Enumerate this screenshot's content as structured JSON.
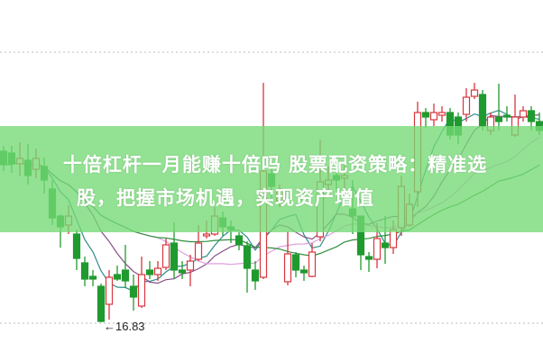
{
  "headline": {
    "line1": "十倍杠杆一月能赚十倍吗 股票配资策略：精准选",
    "line2": "股，把握市场机遇，实现资产增值"
  },
  "chart_data": {
    "type": "candlestick",
    "title": "",
    "annotations": [
      {
        "text": "←16.83",
        "value": 16.83,
        "label": "low"
      }
    ],
    "candle_fields": [
      "open",
      "high",
      "low",
      "close"
    ],
    "candles": [
      [
        26.33,
        26.63,
        25.23,
        25.58
      ],
      [
        26.23,
        26.63,
        25.13,
        25.63
      ],
      [
        25.63,
        26.83,
        24.93,
        25.93
      ],
      [
        25.83,
        26.73,
        24.48,
        24.98
      ],
      [
        25.33,
        26.48,
        24.83,
        25.93
      ],
      [
        25.48,
        25.98,
        23.98,
        24.73
      ],
      [
        24.23,
        24.73,
        22.23,
        22.63
      ],
      [
        22.73,
        22.83,
        20.98,
        22.13
      ],
      [
        22.23,
        23.33,
        21.73,
        22.73
      ],
      [
        21.73,
        21.98,
        19.73,
        20.38
      ],
      [
        20.13,
        20.48,
        18.83,
        19.23
      ],
      [
        19.38,
        19.73,
        18.83,
        19.23
      ],
      [
        18.83,
        18.98,
        16.83,
        16.88
      ],
      [
        17.83,
        19.73,
        16.98,
        19.33
      ],
      [
        19.48,
        19.98,
        19.13,
        19.23
      ],
      [
        19.73,
        21.13,
        18.73,
        19.13
      ],
      [
        18.83,
        19.48,
        17.48,
        18.23
      ],
      [
        17.73,
        20.48,
        17.63,
        19.48
      ],
      [
        19.73,
        20.23,
        19.23,
        19.48
      ],
      [
        19.48,
        20.23,
        19.13,
        19.83
      ],
      [
        19.88,
        21.48,
        19.73,
        21.13
      ],
      [
        21.23,
        22.38,
        19.23,
        19.73
      ],
      [
        19.73,
        20.23,
        19.23,
        19.58
      ],
      [
        19.73,
        20.58,
        18.83,
        20.23
      ],
      [
        20.33,
        22.23,
        20.23,
        21.23
      ],
      [
        21.63,
        22.48,
        21.48,
        21.73
      ],
      [
        21.73,
        23.23,
        21.63,
        22.73
      ],
      [
        22.63,
        22.98,
        21.63,
        22.13
      ],
      [
        22.13,
        22.48,
        21.23,
        21.98
      ],
      [
        21.63,
        21.83,
        20.83,
        21.13
      ],
      [
        21.08,
        21.33,
        18.48,
        19.83
      ],
      [
        19.73,
        20.23,
        18.63,
        19.13
      ],
      [
        19.33,
        30.13,
        19.23,
        25.23
      ],
      [
        25.08,
        25.48,
        23.73,
        24.38
      ],
      [
        23.58,
        24.48,
        23.23,
        24.13
      ],
      [
        19.08,
        21.88,
        18.88,
        20.63
      ],
      [
        20.58,
        20.73,
        19.33,
        19.73
      ],
      [
        19.73,
        19.98,
        19.13,
        19.58
      ],
      [
        19.38,
        21.23,
        19.33,
        20.73
      ],
      [
        21.58,
        26.98,
        21.33,
        24.63
      ],
      [
        24.48,
        25.48,
        23.98,
        24.73
      ],
      [
        24.98,
        25.73,
        24.23,
        24.73
      ],
      [
        24.83,
        25.73,
        24.13,
        24.98
      ],
      [
        23.13,
        24.73,
        21.73,
        22.73
      ],
      [
        22.73,
        22.73,
        19.73,
        20.58
      ],
      [
        20.48,
        20.73,
        19.63,
        20.33
      ],
      [
        20.33,
        22.33,
        19.83,
        21.48
      ],
      [
        21.23,
        22.73,
        20.08,
        20.98
      ],
      [
        20.98,
        22.48,
        20.63,
        21.98
      ],
      [
        22.08,
        24.98,
        21.63,
        24.38
      ],
      [
        22.23,
        23.98,
        22.13,
        23.38
      ],
      [
        24.08,
        29.08,
        23.23,
        28.48
      ],
      [
        28.48,
        28.73,
        27.63,
        28.23
      ],
      [
        28.08,
        28.98,
        27.73,
        28.48
      ],
      [
        28.33,
        28.83,
        27.98,
        28.48
      ],
      [
        28.48,
        28.73,
        26.98,
        27.23
      ],
      [
        28.23,
        28.48,
        26.73,
        27.23
      ],
      [
        28.38,
        29.83,
        27.98,
        29.33
      ],
      [
        29.38,
        30.13,
        29.23,
        29.73
      ],
      [
        29.48,
        29.73,
        27.48,
        27.73
      ],
      [
        27.48,
        28.48,
        27.23,
        28.23
      ],
      [
        28.23,
        30.08,
        27.48,
        27.98
      ],
      [
        28.33,
        28.83,
        27.98,
        28.23
      ],
      [
        27.23,
        29.48,
        27.13,
        28.23
      ],
      [
        28.23,
        28.83,
        27.98,
        28.58
      ],
      [
        28.58,
        28.83,
        27.48,
        27.98
      ],
      [
        27.98,
        28.48,
        27.23,
        27.48
      ]
    ],
    "moving_averages": [
      {
        "period": 5,
        "color": "#2e8b8b"
      },
      {
        "period": 10,
        "color": "#8a4f8a"
      },
      {
        "period": 20,
        "color": "#e0a0e0"
      },
      {
        "period": 30,
        "color": "#2f8f3f"
      }
    ],
    "colors": {
      "up": "#d9363e",
      "down": "#1f9a2e"
    },
    "grid": "dotted horizontal"
  }
}
